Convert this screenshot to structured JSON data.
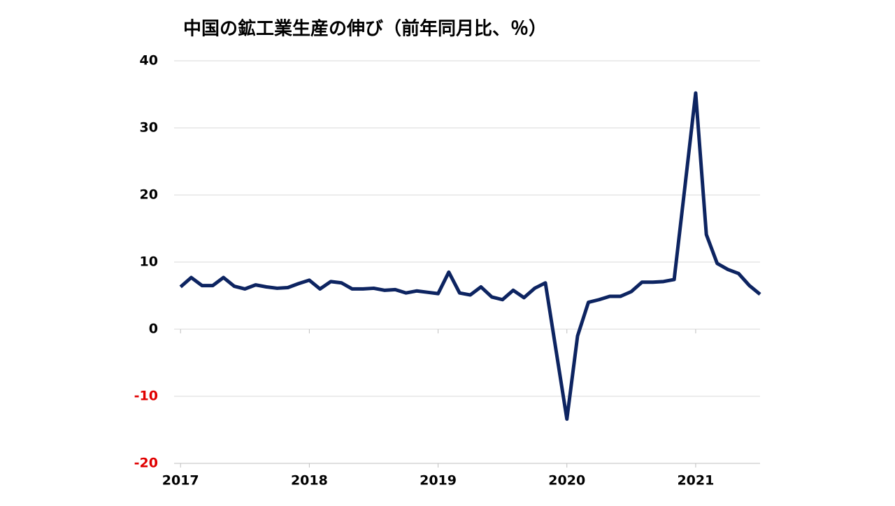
{
  "chart_data": {
    "type": "line",
    "title": "中国の鉱工業生産の伸び（前年同月比、％）",
    "x": [
      2017,
      2017.083,
      2017.167,
      2017.25,
      2017.333,
      2017.417,
      2017.5,
      2017.583,
      2017.667,
      2017.75,
      2017.833,
      2017.917,
      2018,
      2018.083,
      2018.167,
      2018.25,
      2018.333,
      2018.417,
      2018.5,
      2018.583,
      2018.667,
      2018.75,
      2018.833,
      2018.917,
      2019,
      2019.083,
      2019.167,
      2019.25,
      2019.333,
      2019.417,
      2019.5,
      2019.583,
      2019.667,
      2019.75,
      2019.833,
      2019.917,
      2020,
      2020.083,
      2020.167,
      2020.25,
      2020.333,
      2020.417,
      2020.5,
      2020.583,
      2020.667,
      2020.75,
      2020.833,
      2020.917,
      2021,
      2021.083,
      2021.167,
      2021.25,
      2021.333,
      2021.417,
      2021.5
    ],
    "series": [
      {
        "name": "鉱工業生産",
        "color": "#0d2461",
        "values": [
          6.3,
          7.7,
          6.5,
          6.5,
          7.7,
          6.4,
          6.0,
          6.6,
          6.3,
          6.1,
          6.2,
          6.8,
          7.3,
          6.0,
          7.1,
          6.9,
          6.0,
          6.0,
          6.1,
          5.8,
          5.9,
          5.4,
          5.7,
          5.5,
          5.3,
          8.5,
          5.4,
          5.1,
          6.3,
          4.8,
          4.4,
          5.8,
          4.7,
          6.1,
          6.9,
          -3.3,
          -13.4,
          -1.0,
          4.0,
          4.4,
          4.9,
          4.9,
          5.6,
          7.0,
          7.0,
          7.1,
          7.4,
          21.3,
          35.2,
          14.1,
          9.8,
          8.9,
          8.3,
          6.5,
          5.2
        ]
      }
    ],
    "xlim": [
      2016.95,
      2021.5
    ],
    "xticks": [
      2017,
      2018,
      2019,
      2020,
      2021
    ],
    "ylim": [
      -20,
      40
    ],
    "yticks": [
      -20,
      -10,
      0,
      10,
      20,
      30,
      40
    ],
    "grid": true,
    "negative_tick_color": "#e00000"
  }
}
